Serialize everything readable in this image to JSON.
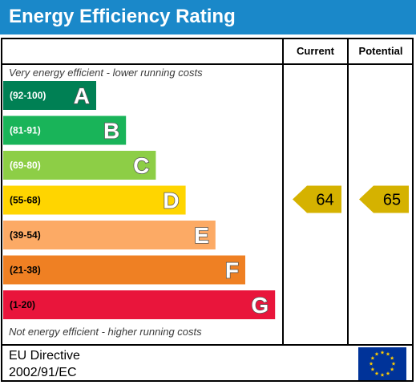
{
  "header": {
    "title": "Energy Efficiency Rating"
  },
  "columns": {
    "current": "Current",
    "potential": "Potential"
  },
  "notes": {
    "top": "Very energy efficient - lower running costs",
    "bottom": "Not energy efficient - higher running costs"
  },
  "footer": {
    "directive_line1": "EU Directive",
    "directive_line2": "2002/91/EC"
  },
  "colors": {
    "title_bar": "#1a88c9",
    "arrow_fill": "#d5b200",
    "flag_blue": "#003399",
    "flag_star": "#ffcc00"
  },
  "icons": {
    "eu_flag": "eu-flag-icon"
  },
  "chart_data": {
    "type": "bar",
    "categories": [
      "A",
      "B",
      "C",
      "D",
      "E",
      "F",
      "G"
    ],
    "bands": [
      {
        "letter": "A",
        "range": "(92-100)",
        "min": 92,
        "max": 100,
        "color": "#008054"
      },
      {
        "letter": "B",
        "range": "(81-91)",
        "min": 81,
        "max": 91,
        "color": "#19b459"
      },
      {
        "letter": "C",
        "range": "(69-80)",
        "min": 69,
        "max": 80,
        "color": "#8dce46"
      },
      {
        "letter": "D",
        "range": "(55-68)",
        "min": 55,
        "max": 68,
        "color": "#ffd500"
      },
      {
        "letter": "E",
        "range": "(39-54)",
        "min": 39,
        "max": 54,
        "color": "#fcaa65"
      },
      {
        "letter": "F",
        "range": "(21-38)",
        "min": 21,
        "max": 38,
        "color": "#ef8023"
      },
      {
        "letter": "G",
        "range": "(1-20)",
        "min": 1,
        "max": 20,
        "color": "#e9153b"
      }
    ],
    "series": [
      {
        "name": "Current",
        "value": 64,
        "label": "64"
      },
      {
        "name": "Potential",
        "value": 65,
        "label": "65"
      }
    ]
  }
}
